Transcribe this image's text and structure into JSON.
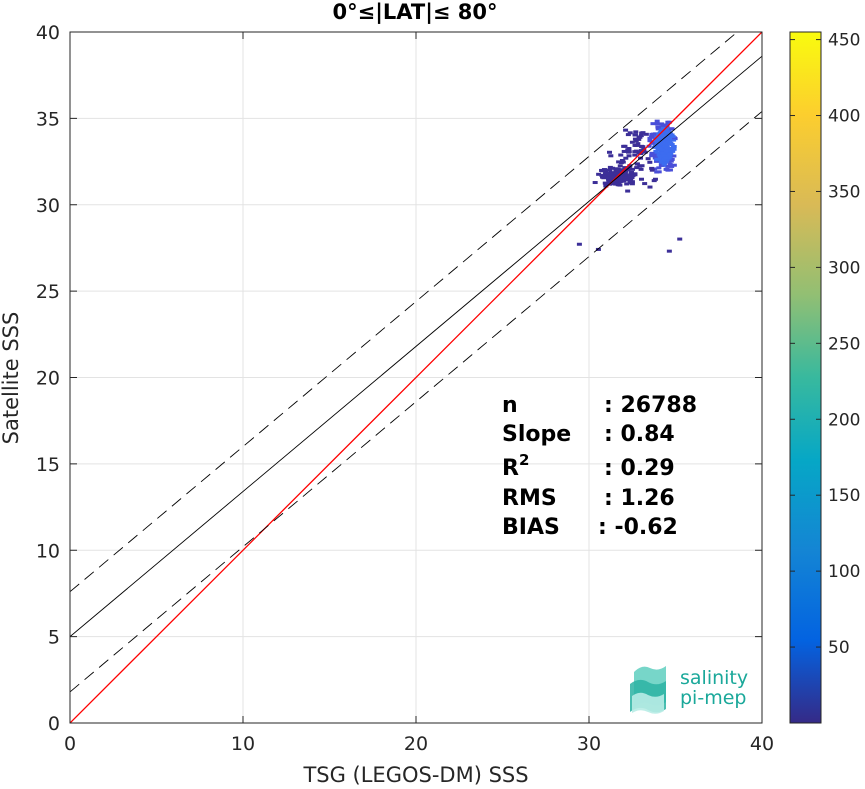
{
  "chart_data": {
    "type": "heatmap",
    "title": "0°≤|LAT|≤ 80°",
    "xlabel": "TSG (LEGOS-DM) SSS",
    "ylabel": "Satellite SSS",
    "xlim": [
      0,
      40
    ],
    "ylim": [
      0,
      40
    ],
    "xticks": [
      "0",
      "10",
      "20",
      "30",
      "40"
    ],
    "yticks": [
      "0",
      "5",
      "10",
      "15",
      "20",
      "25",
      "30",
      "35",
      "40"
    ],
    "grid": true,
    "colorbar": {
      "range": [
        0,
        455
      ],
      "ticks": [
        "50",
        "100",
        "150",
        "200",
        "250",
        "300",
        "350",
        "400",
        "450"
      ],
      "colormap": "parula"
    },
    "lines": [
      {
        "kind": "identity",
        "color": "#ff0000",
        "style": "solid",
        "intercept": 0,
        "slope": 1
      },
      {
        "kind": "regression",
        "color": "#000000",
        "style": "solid",
        "intercept": 5.0,
        "slope": 0.84
      },
      {
        "kind": "upper-bound",
        "color": "#000000",
        "style": "dashed",
        "intercept": 7.6,
        "slope": 0.84
      },
      {
        "kind": "lower-bound",
        "color": "#000000",
        "style": "dashed",
        "intercept": 1.8,
        "slope": 0.84
      }
    ],
    "density_cloud": {
      "x_range": [
        29,
        35
      ],
      "y_range": [
        27.5,
        36.8
      ],
      "center": [
        34.2,
        33.5
      ]
    },
    "stats": [
      {
        "label": "n",
        "value": ": 26788"
      },
      {
        "label": "Slope",
        "value": ": 0.84"
      },
      {
        "label": "R",
        "sup": "2",
        "value": ": 0.29"
      },
      {
        "label": "RMS",
        "value": ": 1.26"
      },
      {
        "label": "BIAS",
        "value": ": -0.62"
      }
    ]
  },
  "logo": {
    "line1": "salinity",
    "line2": "pi-mep"
  }
}
